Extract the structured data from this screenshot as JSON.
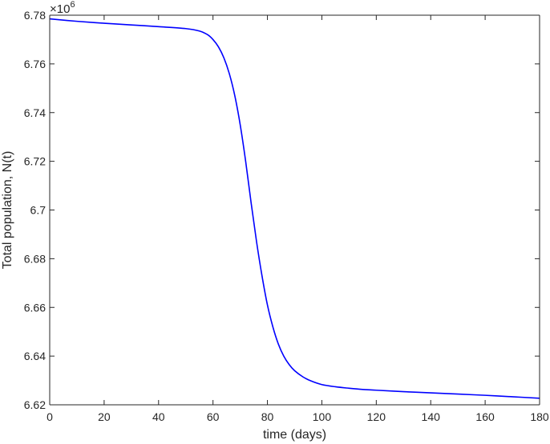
{
  "chart_data": {
    "type": "line",
    "xlabel": "time (days)",
    "ylabel": "Total population, N(t)",
    "exponent_label": "×10",
    "exponent_power": "6",
    "xlim": [
      0,
      180
    ],
    "ylim": [
      6.62,
      6.78
    ],
    "x_ticks": [
      0,
      20,
      40,
      60,
      80,
      100,
      120,
      140,
      160,
      180
    ],
    "x_tick_labels": [
      "0",
      "20",
      "40",
      "60",
      "80",
      "100",
      "120",
      "140",
      "160",
      "180"
    ],
    "y_ticks": [
      6.62,
      6.64,
      6.66,
      6.68,
      6.7,
      6.72,
      6.74,
      6.76,
      6.78
    ],
    "y_tick_labels": [
      "6.62",
      "6.64",
      "6.66",
      "6.68",
      "6.7",
      "6.72",
      "6.74",
      "6.76",
      "6.78"
    ],
    "grid": false,
    "series": [
      {
        "color": "#0000ff",
        "x": [
          0,
          10,
          20,
          30,
          40,
          50,
          55,
          58,
          60,
          62,
          64,
          66,
          68,
          70,
          72,
          74,
          76,
          78,
          80,
          82,
          84,
          86,
          88,
          90,
          93,
          96,
          100,
          105,
          110,
          115,
          120,
          130,
          140,
          150,
          160,
          170,
          180
        ],
        "y": [
          6.7785,
          6.7775,
          6.7767,
          6.776,
          6.7753,
          6.7745,
          6.7735,
          6.772,
          6.77,
          6.767,
          6.7625,
          6.756,
          6.747,
          6.735,
          6.72,
          6.703,
          6.687,
          6.673,
          6.661,
          6.652,
          6.645,
          6.64,
          6.6365,
          6.634,
          6.6315,
          6.6298,
          6.6283,
          6.6274,
          6.6268,
          6.6263,
          6.626,
          6.6254,
          6.6249,
          6.6244,
          6.6239,
          6.6233,
          6.6227
        ]
      }
    ]
  }
}
